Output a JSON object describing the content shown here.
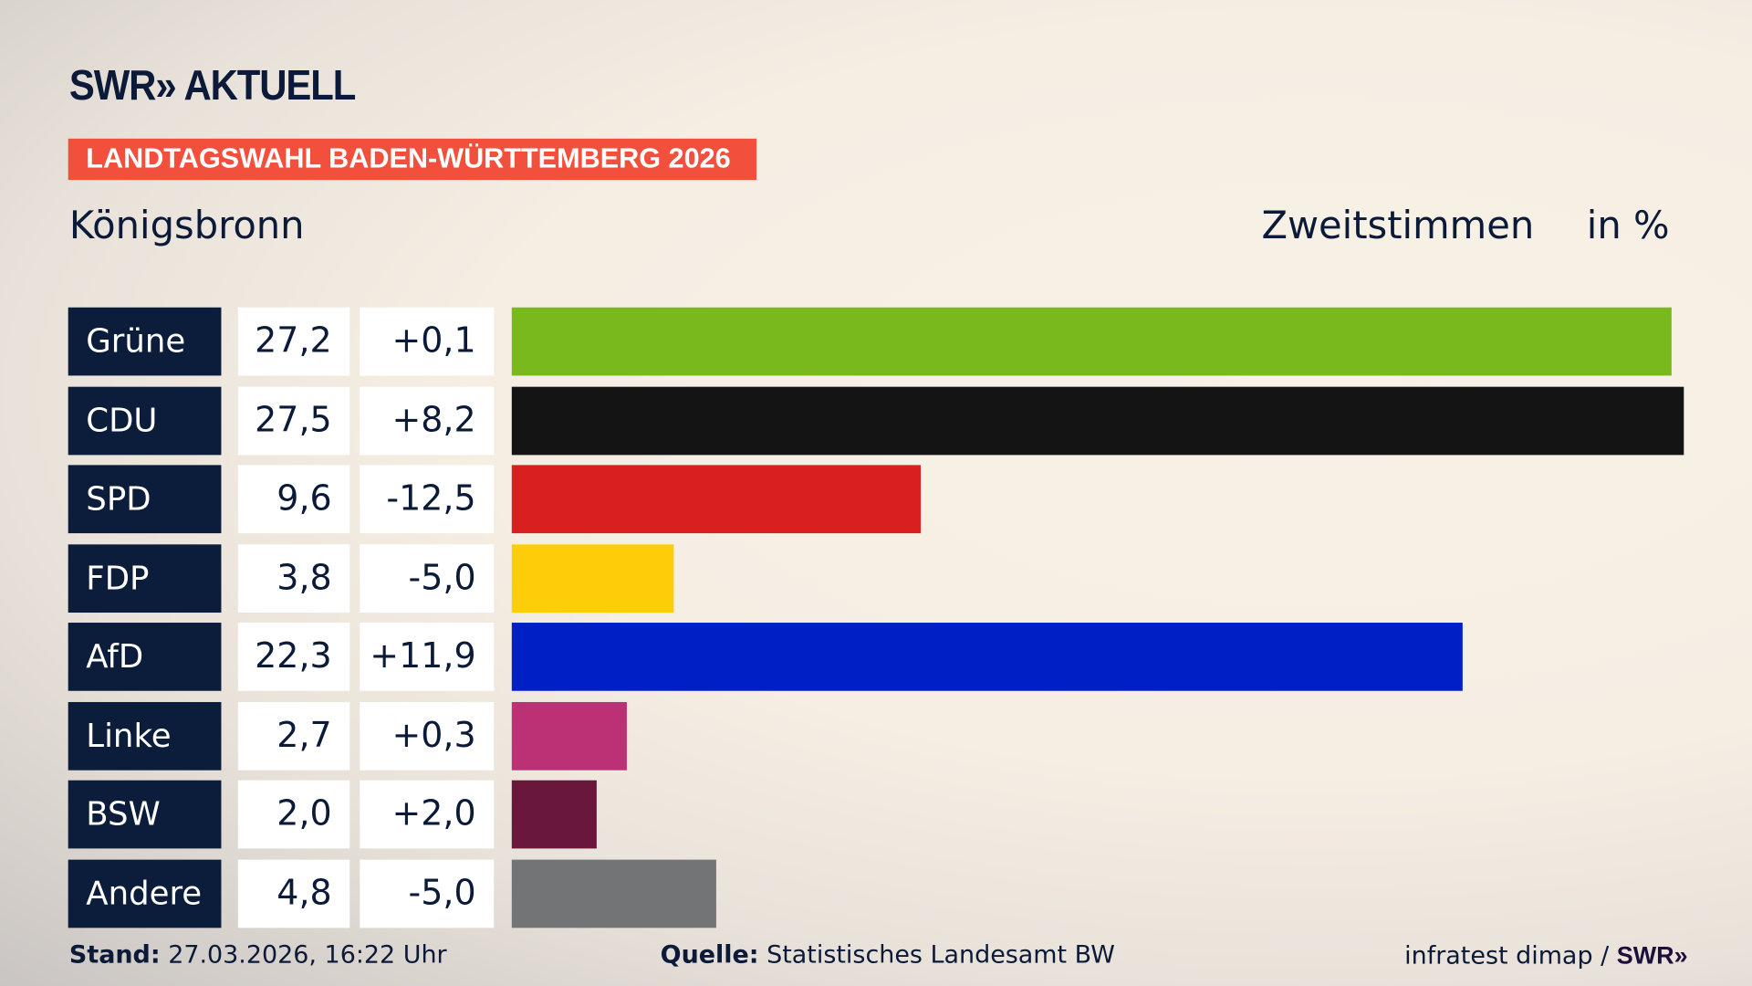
{
  "header": {
    "logo": "SWR» AKTUELL",
    "banner": "LANDTAGSWAHL BADEN-WÜRTTEMBERG 2026",
    "place": "Königsbronn",
    "metric": "Zweitstimmen",
    "unit": "in %"
  },
  "chart_data": {
    "type": "bar",
    "orientation": "horizontal",
    "categories": [
      "Grüne",
      "CDU",
      "SPD",
      "FDP",
      "AfD",
      "Linke",
      "BSW",
      "Andere"
    ],
    "values": [
      27.2,
      27.5,
      9.6,
      3.8,
      22.3,
      2.7,
      2.0,
      4.8
    ],
    "value_labels": [
      "27,2",
      "27,5",
      "9,6",
      "3,8",
      "22,3",
      "2,7",
      "2,0",
      "4,8"
    ],
    "diff_labels": [
      "+0,1",
      "+8,2",
      "-12,5",
      "-5,0",
      "+11,9",
      "+0,3",
      "+2,0",
      "-5,0"
    ],
    "colors": [
      "#7ab91e",
      "#141414",
      "#d9201f",
      "#fdcd0a",
      "#0020c6",
      "#bc3075",
      "#6a173c",
      "#737476"
    ],
    "xlim": [
      0,
      27.5
    ],
    "grid": false
  },
  "footer": {
    "stand_label": "Stand:",
    "stand_value": "27.03.2026, 16:22 Uhr",
    "source_label": "Quelle:",
    "source_value": "Statistisches Landesamt BW",
    "credit": "infratest dimap /",
    "credit_logo": "SWR»"
  }
}
